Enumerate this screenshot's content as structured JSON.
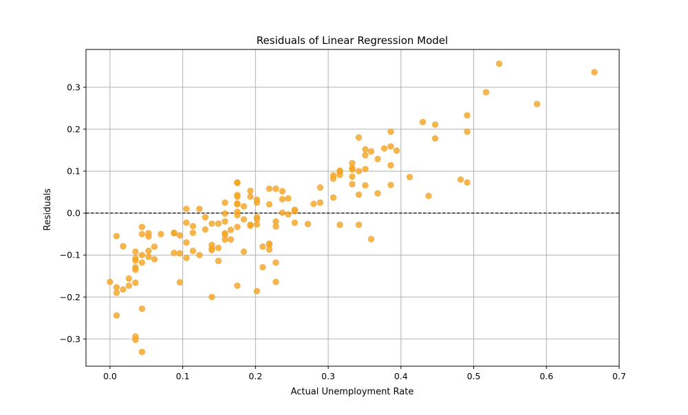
{
  "chart_data": {
    "type": "scatter",
    "title": "Residuals of Linear Regression Model",
    "xlabel": "Actual Unemployment Rate",
    "ylabel": "Residuals",
    "xlim": [
      -0.033,
      0.7
    ],
    "ylim": [
      -0.365,
      0.39
    ],
    "xticks": [
      0.0,
      0.1,
      0.2,
      0.3,
      0.4,
      0.5,
      0.6,
      0.7
    ],
    "xtick_labels": [
      "0.0",
      "0.1",
      "0.2",
      "0.3",
      "0.4",
      "0.5",
      "0.6",
      "0.7"
    ],
    "yticks": [
      -0.3,
      -0.2,
      -0.1,
      0.0,
      0.1,
      0.2,
      0.3
    ],
    "ytick_labels": [
      "−0.3",
      "−0.2",
      "−0.1",
      "0.0",
      "0.1",
      "0.2",
      "0.3"
    ],
    "grid": true,
    "reference_line": {
      "y": 0.0,
      "style": "dashed",
      "color": "#000000"
    },
    "point_color": "#f5a623",
    "points": [
      [
        0.0,
        -0.164
      ],
      [
        0.009,
        -0.055
      ],
      [
        0.009,
        -0.177
      ],
      [
        0.009,
        -0.19
      ],
      [
        0.009,
        -0.244
      ],
      [
        0.018,
        -0.079
      ],
      [
        0.018,
        -0.182
      ],
      [
        0.026,
        -0.156
      ],
      [
        0.026,
        -0.173
      ],
      [
        0.035,
        -0.092
      ],
      [
        0.035,
        -0.108
      ],
      [
        0.035,
        -0.113
      ],
      [
        0.035,
        -0.129
      ],
      [
        0.035,
        -0.135
      ],
      [
        0.035,
        -0.166
      ],
      [
        0.035,
        -0.294
      ],
      [
        0.035,
        -0.302
      ],
      [
        0.044,
        -0.033
      ],
      [
        0.044,
        -0.05
      ],
      [
        0.044,
        -0.1
      ],
      [
        0.044,
        -0.118
      ],
      [
        0.044,
        -0.228
      ],
      [
        0.044,
        -0.331
      ],
      [
        0.053,
        -0.048
      ],
      [
        0.053,
        -0.056
      ],
      [
        0.053,
        -0.09
      ],
      [
        0.053,
        -0.104
      ],
      [
        0.061,
        -0.08
      ],
      [
        0.061,
        -0.11
      ],
      [
        0.07,
        -0.05
      ],
      [
        0.088,
        -0.047
      ],
      [
        0.088,
        -0.048
      ],
      [
        0.088,
        -0.095
      ],
      [
        0.096,
        -0.053
      ],
      [
        0.096,
        -0.096
      ],
      [
        0.096,
        -0.165
      ],
      [
        0.105,
        0.01
      ],
      [
        0.105,
        -0.023
      ],
      [
        0.105,
        -0.07
      ],
      [
        0.105,
        -0.107
      ],
      [
        0.114,
        -0.031
      ],
      [
        0.114,
        -0.047
      ],
      [
        0.114,
        -0.09
      ],
      [
        0.123,
        0.01
      ],
      [
        0.123,
        -0.1
      ],
      [
        0.131,
        -0.01
      ],
      [
        0.131,
        -0.039
      ],
      [
        0.14,
        -0.025
      ],
      [
        0.14,
        -0.076
      ],
      [
        0.14,
        -0.085
      ],
      [
        0.14,
        -0.088
      ],
      [
        0.14,
        -0.2
      ],
      [
        0.149,
        -0.025
      ],
      [
        0.149,
        -0.083
      ],
      [
        0.149,
        -0.114
      ],
      [
        0.158,
        0.025
      ],
      [
        0.158,
        -0.001
      ],
      [
        0.158,
        -0.02
      ],
      [
        0.158,
        -0.048
      ],
      [
        0.158,
        -0.052
      ],
      [
        0.158,
        -0.063
      ],
      [
        0.166,
        -0.04
      ],
      [
        0.166,
        -0.063
      ],
      [
        0.175,
        0.073
      ],
      [
        0.175,
        0.072
      ],
      [
        0.175,
        0.043
      ],
      [
        0.175,
        0.039
      ],
      [
        0.175,
        0.023
      ],
      [
        0.175,
        0.021
      ],
      [
        0.175,
        0.003
      ],
      [
        0.175,
        -0.005
      ],
      [
        0.175,
        -0.033
      ],
      [
        0.175,
        -0.173
      ],
      [
        0.184,
        0.016
      ],
      [
        0.184,
        -0.015
      ],
      [
        0.184,
        -0.092
      ],
      [
        0.193,
        0.053
      ],
      [
        0.193,
        0.039
      ],
      [
        0.193,
        -0.028
      ],
      [
        0.193,
        -0.03
      ],
      [
        0.202,
        0.032
      ],
      [
        0.202,
        0.025
      ],
      [
        0.202,
        -0.01
      ],
      [
        0.202,
        -0.015
      ],
      [
        0.202,
        -0.027
      ],
      [
        0.202,
        -0.186
      ],
      [
        0.21,
        -0.08
      ],
      [
        0.21,
        -0.129
      ],
      [
        0.219,
        0.058
      ],
      [
        0.219,
        0.021
      ],
      [
        0.219,
        -0.073
      ],
      [
        0.219,
        -0.075
      ],
      [
        0.219,
        -0.087
      ],
      [
        0.228,
        0.058
      ],
      [
        0.228,
        -0.02
      ],
      [
        0.228,
        -0.032
      ],
      [
        0.228,
        -0.118
      ],
      [
        0.228,
        -0.164
      ],
      [
        0.237,
        0.052
      ],
      [
        0.237,
        0.033
      ],
      [
        0.237,
        0.001
      ],
      [
        0.245,
        0.035
      ],
      [
        0.245,
        -0.003
      ],
      [
        0.254,
        0.008
      ],
      [
        0.254,
        0.004
      ],
      [
        0.254,
        -0.023
      ],
      [
        0.272,
        -0.026
      ],
      [
        0.28,
        0.022
      ],
      [
        0.289,
        0.061
      ],
      [
        0.289,
        0.025
      ],
      [
        0.307,
        0.09
      ],
      [
        0.307,
        0.082
      ],
      [
        0.307,
        0.037
      ],
      [
        0.316,
        0.101
      ],
      [
        0.316,
        0.099
      ],
      [
        0.316,
        0.091
      ],
      [
        0.316,
        -0.028
      ],
      [
        0.333,
        0.119
      ],
      [
        0.333,
        0.107
      ],
      [
        0.333,
        0.104
      ],
      [
        0.333,
        0.087
      ],
      [
        0.333,
        0.069
      ],
      [
        0.342,
        0.18
      ],
      [
        0.342,
        0.1
      ],
      [
        0.342,
        0.044
      ],
      [
        0.342,
        -0.028
      ],
      [
        0.351,
        0.152
      ],
      [
        0.351,
        0.138
      ],
      [
        0.351,
        0.105
      ],
      [
        0.351,
        0.066
      ],
      [
        0.359,
        0.147
      ],
      [
        0.359,
        -0.062
      ],
      [
        0.368,
        0.129
      ],
      [
        0.368,
        0.047
      ],
      [
        0.377,
        0.154
      ],
      [
        0.386,
        0.194
      ],
      [
        0.386,
        0.159
      ],
      [
        0.386,
        0.114
      ],
      [
        0.386,
        0.067
      ],
      [
        0.394,
        0.149
      ],
      [
        0.412,
        0.086
      ],
      [
        0.43,
        0.217
      ],
      [
        0.438,
        0.041
      ],
      [
        0.447,
        0.211
      ],
      [
        0.447,
        0.178
      ],
      [
        0.482,
        0.08
      ],
      [
        0.491,
        0.233
      ],
      [
        0.491,
        0.194
      ],
      [
        0.491,
        0.073
      ],
      [
        0.517,
        0.288
      ],
      [
        0.535,
        0.356
      ],
      [
        0.587,
        0.26
      ],
      [
        0.666,
        0.336
      ]
    ]
  }
}
